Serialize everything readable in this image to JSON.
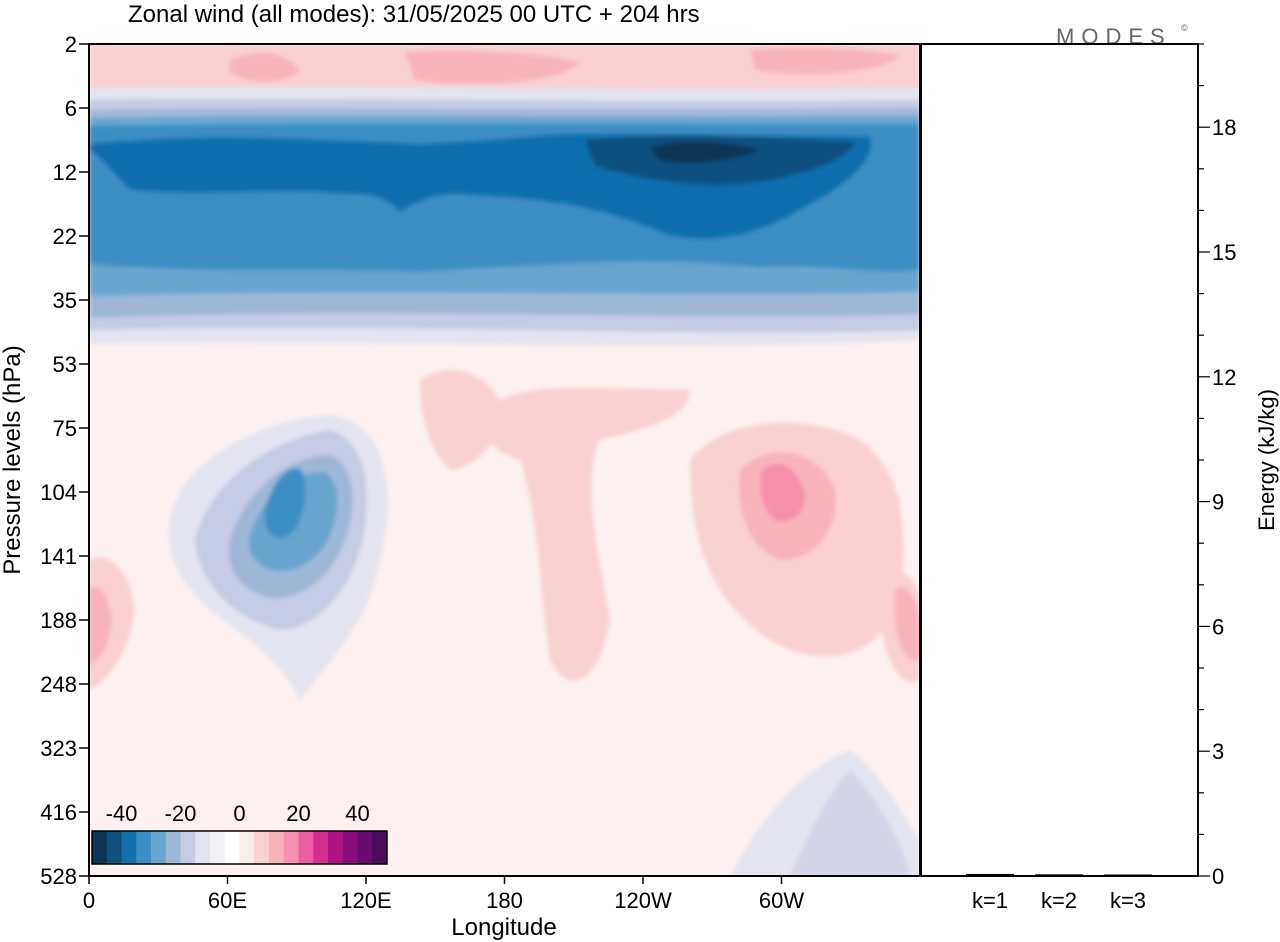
{
  "header": {
    "title": "Zonal wind (all modes):  31/05/2025  00 UTC  + 204 hrs",
    "logo_text": "MODES",
    "logo_mark": "©"
  },
  "chart_data": [
    {
      "type": "heatmap",
      "title": "Zonal wind (all modes):  31/05/2025  00 UTC  + 204 hrs",
      "xlabel": "Longitude",
      "ylabel": "Pressure levels (hPa)",
      "x_ticks": [
        "0",
        "60E",
        "120E",
        "180",
        "120W",
        "60W"
      ],
      "x_tick_degrees": [
        0,
        60,
        120,
        180,
        240,
        300
      ],
      "xlim": [
        0,
        360
      ],
      "y_ticks": [
        "2",
        "6",
        "12",
        "22",
        "35",
        "53",
        "75",
        "104",
        "141",
        "188",
        "248",
        "323",
        "416",
        "528"
      ],
      "y_scale": "pressure levels (ordinal, top to bottom)",
      "colorbar": {
        "tick_labels": [
          "-40",
          "-20",
          "0",
          "20",
          "40"
        ],
        "tick_values": [
          -40,
          -20,
          0,
          20,
          40
        ],
        "range": [
          -50,
          50
        ],
        "step": 5,
        "colors": [
          "#0c3556",
          "#114f7c",
          "#1170ad",
          "#3c8fc3",
          "#69a6cf",
          "#9fb7d7",
          "#c5cbe2",
          "#e3e4ef",
          "#f4f1f7",
          "#ffffff",
          "#fdeaea",
          "#fad0d2",
          "#f8b2bb",
          "#f590ad",
          "#ec5ea1",
          "#d52f92",
          "#b01484",
          "#8a0d7c",
          "#6a0c72",
          "#4a0b5e"
        ]
      },
      "features": [
        {
          "name": "stratospheric easterly band",
          "level_range": [
            "6",
            "35"
          ],
          "min_value": -40
        },
        {
          "name": "weak easterly core",
          "longitude": 85,
          "level": "104",
          "value": -30
        },
        {
          "name": "westerly maximum",
          "longitude": 295,
          "level": "104",
          "value": 18
        },
        {
          "name": "upper westerly patches",
          "level": "2",
          "value": 15
        }
      ]
    },
    {
      "type": "bar",
      "ylabel": "Energy (kJ/kg)",
      "ylim": [
        0,
        20
      ],
      "y_ticks": [
        "0",
        "3",
        "6",
        "9",
        "12",
        "15",
        "18"
      ],
      "y_tick_values": [
        0,
        3,
        6,
        9,
        12,
        15,
        18
      ],
      "categories": [
        "k=1",
        "k=2",
        "k=3"
      ],
      "values": [
        0.05,
        0.04,
        0.02
      ],
      "bar_color": "#000000"
    }
  ]
}
